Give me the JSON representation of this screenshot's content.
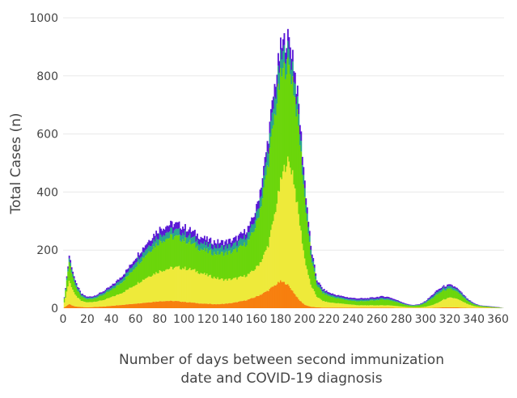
{
  "chart_data": {
    "type": "bar",
    "stacked": true,
    "title": "",
    "xlabel_lines": [
      "Number of days between second immunization",
      "date and COVID-19 diagnosis"
    ],
    "ylabel": "Total Cases (n)",
    "xlim": [
      0,
      365
    ],
    "ylim": [
      0,
      1000
    ],
    "x_ticks": [
      0,
      20,
      40,
      60,
      80,
      100,
      120,
      140,
      160,
      180,
      200,
      220,
      240,
      260,
      280,
      300,
      320,
      340,
      360
    ],
    "y_ticks": [
      0,
      200,
      400,
      600,
      800,
      1000
    ],
    "grid": true,
    "legend": "none",
    "series_colors": [
      "#f77f0e",
      "#eeea3a",
      "#6bd60b",
      "#2aa58f",
      "#5a18d6"
    ],
    "series_note": "Values are cumulative top edges of each stacked layer, sampled every 5 days (interpolated between samples).",
    "x": [
      0,
      5,
      10,
      15,
      20,
      25,
      30,
      35,
      40,
      45,
      50,
      55,
      60,
      65,
      70,
      75,
      80,
      85,
      90,
      95,
      100,
      105,
      110,
      115,
      120,
      125,
      130,
      135,
      140,
      145,
      150,
      155,
      160,
      165,
      170,
      175,
      180,
      185,
      190,
      195,
      200,
      205,
      210,
      215,
      220,
      225,
      230,
      235,
      240,
      245,
      250,
      255,
      260,
      265,
      270,
      275,
      280,
      285,
      290,
      295,
      300,
      305,
      310,
      315,
      320,
      325,
      330,
      335,
      340,
      345,
      350,
      355,
      360,
      365
    ],
    "cumulative_layers": [
      {
        "color": "#f77f0e",
        "values": [
          0,
          14,
          6,
          4,
          3,
          4,
          5,
          6,
          8,
          10,
          12,
          14,
          16,
          18,
          20,
          22,
          24,
          25,
          25,
          24,
          22,
          20,
          18,
          16,
          15,
          14,
          14,
          16,
          18,
          22,
          26,
          32,
          40,
          50,
          62,
          78,
          92,
          85,
          60,
          30,
          12,
          5,
          3,
          2,
          2,
          2,
          2,
          2,
          2,
          2,
          2,
          2,
          2,
          2,
          2,
          1,
          1,
          1,
          1,
          1,
          1,
          1,
          2,
          3,
          3,
          3,
          2,
          1,
          1,
          1,
          1,
          1,
          0,
          0
        ]
      },
      {
        "color": "#eeea3a",
        "values": [
          0,
          95,
          45,
          25,
          20,
          22,
          25,
          30,
          38,
          46,
          56,
          68,
          82,
          95,
          108,
          118,
          128,
          134,
          138,
          140,
          138,
          134,
          128,
          120,
          112,
          106,
          100,
          98,
          100,
          104,
          110,
          120,
          140,
          170,
          220,
          320,
          430,
          510,
          470,
          320,
          170,
          80,
          40,
          25,
          20,
          18,
          16,
          14,
          12,
          10,
          10,
          10,
          10,
          10,
          10,
          8,
          6,
          4,
          3,
          3,
          5,
          10,
          18,
          30,
          36,
          34,
          24,
          14,
          7,
          4,
          3,
          2,
          1,
          0
        ]
      },
      {
        "color": "#6bd60b",
        "values": [
          0,
          160,
          75,
          40,
          30,
          33,
          40,
          50,
          62,
          78,
          96,
          118,
          145,
          168,
          192,
          212,
          230,
          240,
          246,
          244,
          236,
          226,
          214,
          202,
          194,
          190,
          188,
          190,
          194,
          204,
          218,
          240,
          290,
          380,
          510,
          660,
          790,
          840,
          790,
          620,
          380,
          180,
          80,
          52,
          42,
          36,
          32,
          28,
          25,
          24,
          24,
          26,
          28,
          30,
          28,
          22,
          16,
          10,
          8,
          10,
          18,
          32,
          48,
          62,
          66,
          60,
          42,
          24,
          13,
          8,
          6,
          4,
          3,
          0
        ]
      },
      {
        "color": "#2aa58f",
        "values": [
          0,
          172,
          85,
          46,
          35,
          38,
          46,
          57,
          70,
          88,
          108,
          132,
          162,
          186,
          212,
          234,
          252,
          262,
          268,
          266,
          258,
          248,
          236,
          224,
          216,
          212,
          210,
          212,
          216,
          226,
          242,
          266,
          320,
          418,
          558,
          718,
          850,
          895,
          840,
          660,
          410,
          198,
          90,
          60,
          48,
          42,
          37,
          33,
          30,
          29,
          29,
          31,
          33,
          35,
          33,
          26,
          19,
          12,
          10,
          12,
          22,
          38,
          56,
          70,
          74,
          68,
          48,
          28,
          15,
          9,
          7,
          5,
          3,
          0
        ]
      },
      {
        "color": "#5a18d6",
        "values": [
          0,
          182,
          92,
          50,
          39,
          42,
          51,
          63,
          77,
          96,
          118,
          144,
          176,
          202,
          230,
          254,
          274,
          284,
          290,
          288,
          280,
          269,
          256,
          243,
          234,
          229,
          227,
          229,
          234,
          245,
          262,
          288,
          345,
          450,
          595,
          762,
          890,
          935,
          880,
          695,
          436,
          212,
          98,
          66,
          54,
          47,
          42,
          38,
          35,
          34,
          34,
          36,
          39,
          41,
          38,
          30,
          22,
          14,
          11,
          14,
          25,
          44,
          63,
          76,
          80,
          73,
          52,
          31,
          17,
          10,
          8,
          6,
          4,
          0
        ]
      }
    ]
  }
}
